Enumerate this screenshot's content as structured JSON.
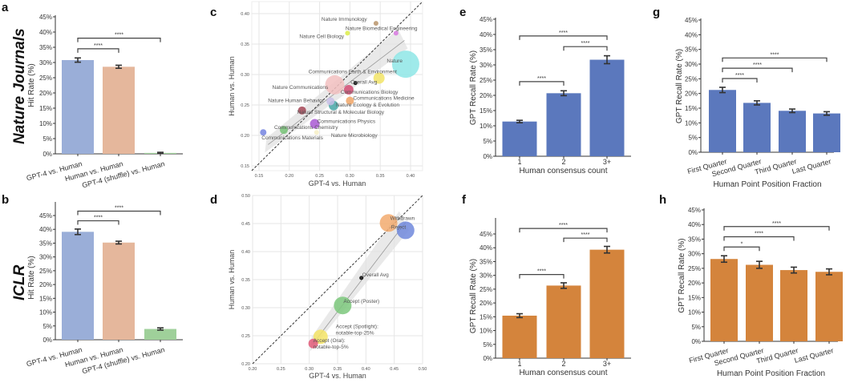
{
  "row_labels": [
    "Nature Journals",
    "ICLR"
  ],
  "chart_data": [
    {
      "panel": "a",
      "type": "bar",
      "categories": [
        "GPT-4 vs. Human",
        "Human vs. Human",
        "GPT-4 (shuffle) vs. Human"
      ],
      "values": [
        30.8,
        28.6,
        0.3
      ],
      "errors": [
        0.7,
        0.5,
        0.2
      ],
      "colors": [
        "#9aaed8",
        "#e5b79c",
        "#9fd09a"
      ],
      "ylabel": "Hit Rate (%)",
      "xlabel": "",
      "ylim": [
        0,
        45
      ],
      "yticks": [
        "0%",
        "5%",
        "10%",
        "15%",
        "20%",
        "25%",
        "30%",
        "35%",
        "40%",
        "45%"
      ],
      "significance": [
        {
          "from": 0,
          "to": 1,
          "label": "****"
        },
        {
          "from": 0,
          "to": 2,
          "label": "****"
        }
      ]
    },
    {
      "panel": "b",
      "type": "bar",
      "categories": [
        "GPT-4 vs. Human",
        "Human vs. Human",
        "GPT-4 (shuffle) vs. Human"
      ],
      "values": [
        39.1,
        35.2,
        3.9
      ],
      "errors": [
        1.0,
        0.5,
        0.4
      ],
      "colors": [
        "#9aaed8",
        "#e5b79c",
        "#9fd09a"
      ],
      "ylabel": "Hit Rate (%)",
      "xlabel": "",
      "ylim": [
        0,
        45
      ],
      "yticks": [
        "0%",
        "5%",
        "10%",
        "15%",
        "20%",
        "25%",
        "30%",
        "35%",
        "40%",
        "45%"
      ],
      "significance": [
        {
          "from": 0,
          "to": 1,
          "label": "****"
        },
        {
          "from": 0,
          "to": 2,
          "label": "****"
        }
      ]
    },
    {
      "panel": "c",
      "type": "scatter",
      "xlabel": "GPT-4 vs. Human",
      "ylabel": "Human vs. Human",
      "xlim": [
        0.14,
        0.42
      ],
      "ylim": [
        0.14,
        0.42
      ],
      "xticks": [
        "0.15",
        "0.20",
        "0.25",
        "0.30",
        "0.35",
        "0.40"
      ],
      "yticks": [
        "0.15",
        "0.20",
        "0.25",
        "0.30",
        "0.35",
        "0.40"
      ],
      "grid": true,
      "diagonal": "y = x (dashed)",
      "regression": [
        [
          0.165,
          0.185
        ],
        [
          0.39,
          0.356
        ]
      ],
      "points": [
        {
          "label": "Nature Immunology",
          "x": 0.343,
          "y": 0.384,
          "size": 3,
          "color": "#b8946a"
        },
        {
          "label": "Nature Biomedical Engineering",
          "x": 0.376,
          "y": 0.368,
          "size": 3,
          "color": "#d878e0"
        },
        {
          "label": "Nature Cell Biology",
          "x": 0.296,
          "y": 0.368,
          "size": 3,
          "color": "#dcec48"
        },
        {
          "label": "Nature",
          "x": 0.392,
          "y": 0.317,
          "size": 17,
          "color": "#8ee6e6"
        },
        {
          "label": "Communications Earth & Environment",
          "x": 0.348,
          "y": 0.294,
          "size": 7,
          "color": "#f2e466"
        },
        {
          "label": "Nature Communications",
          "x": 0.275,
          "y": 0.283,
          "size": 12,
          "color": "#f2c0c0"
        },
        {
          "label": "Overall Avg",
          "x": 0.309,
          "y": 0.286,
          "size": 2,
          "color": "#333333"
        },
        {
          "label": "Communications Biology",
          "x": 0.298,
          "y": 0.275,
          "size": 6,
          "color": "#d24a72"
        },
        {
          "label": "Communications Medicine",
          "x": 0.3,
          "y": 0.257,
          "size": 5,
          "color": "#f0a466"
        },
        {
          "label": "Nature Human Behavior",
          "x": 0.268,
          "y": 0.256,
          "size": 5,
          "color": "#c8c0e8"
        },
        {
          "label": "Nature Ecology & Evolution",
          "x": 0.273,
          "y": 0.249,
          "size": 6,
          "color": "#46a6a6"
        },
        {
          "label": "Nature Structural & Molecular Biology",
          "x": 0.221,
          "y": 0.241,
          "size": 5,
          "color": "#a44656"
        },
        {
          "label": "Communications Physics",
          "x": 0.242,
          "y": 0.219,
          "size": 6,
          "color": "#a858d4"
        },
        {
          "label": "Communications Chemistry",
          "x": 0.191,
          "y": 0.209,
          "size": 5,
          "color": "#78c478"
        },
        {
          "label": "Nature Microbiology",
          "x": 0.245,
          "y": 0.205,
          "size": 3,
          "color": "#f6eec6"
        },
        {
          "label": "Communications Materials",
          "x": 0.157,
          "y": 0.205,
          "size": 4,
          "color": "#7484e0"
        }
      ]
    },
    {
      "panel": "d",
      "type": "scatter",
      "xlabel": "GPT-4 vs. Human",
      "ylabel": "Human vs. Human",
      "xlim": [
        0.2,
        0.5
      ],
      "ylim": [
        0.2,
        0.5
      ],
      "xticks": [
        "0.20",
        "0.25",
        "0.30",
        "0.35",
        "0.40",
        "0.45",
        "0.50"
      ],
      "yticks": [
        "0.20",
        "0.25",
        "0.30",
        "0.35",
        "0.40",
        "0.45",
        "0.50"
      ],
      "grid": true,
      "diagonal": "y = x (dashed)",
      "regression": [
        [
          0.307,
          0.236
        ],
        [
          0.47,
          0.452
        ]
      ],
      "points": [
        {
          "label": "Withdrawn",
          "x": 0.44,
          "y": 0.451,
          "size": 11,
          "color": "#f2aa6e"
        },
        {
          "label": "Reject",
          "x": 0.47,
          "y": 0.438,
          "size": 11,
          "color": "#7088dc"
        },
        {
          "label": "Overall Avg",
          "x": 0.392,
          "y": 0.353,
          "size": 2,
          "color": "#333333"
        },
        {
          "label": "Accept (Poster)",
          "x": 0.359,
          "y": 0.304,
          "size": 11,
          "color": "#7cc87c"
        },
        {
          "label": "Accept (Spotlight): notable-top-25%",
          "x": 0.32,
          "y": 0.248,
          "size": 9,
          "color": "#f4e466"
        },
        {
          "label": "Accept (Oral): notable-top-5%",
          "x": 0.307,
          "y": 0.236,
          "size": 6,
          "color": "#e05a78"
        }
      ]
    },
    {
      "panel": "e",
      "type": "bar",
      "categories": [
        "1",
        "2",
        "3+"
      ],
      "values": [
        11.4,
        20.7,
        31.7
      ],
      "errors": [
        0.4,
        0.8,
        1.3
      ],
      "colors": [
        "#5b78bd",
        "#5b78bd",
        "#5b78bd"
      ],
      "ylabel": "GPT Recall Rate (%)",
      "xlabel": "Human consensus count",
      "ylim": [
        0,
        45
      ],
      "yticks": [
        "0%",
        "5%",
        "10%",
        "15%",
        "20%",
        "25%",
        "30%",
        "35%",
        "40%",
        "45%"
      ],
      "significance": [
        {
          "from": 0,
          "to": 1,
          "label": "****"
        },
        {
          "from": 1,
          "to": 2,
          "label": "****"
        },
        {
          "from": 0,
          "to": 2,
          "label": "****"
        }
      ]
    },
    {
      "panel": "f",
      "type": "bar",
      "categories": [
        "1",
        "2",
        "3+"
      ],
      "values": [
        15.4,
        26.3,
        39.3
      ],
      "errors": [
        0.7,
        1.0,
        1.2
      ],
      "colors": [
        "#d4843c",
        "#d4843c",
        "#d4843c"
      ],
      "ylabel": "GPT Recall Rate (%)",
      "xlabel": "Human consensus count",
      "ylim": [
        0,
        45
      ],
      "yticks": [
        "0%",
        "5%",
        "10%",
        "15%",
        "20%",
        "25%",
        "30%",
        "35%",
        "40%",
        "45%"
      ],
      "significance": [
        {
          "from": 0,
          "to": 1,
          "label": "****"
        },
        {
          "from": 1,
          "to": 2,
          "label": "****"
        },
        {
          "from": 0,
          "to": 2,
          "label": "****"
        }
      ]
    },
    {
      "panel": "g",
      "type": "bar",
      "categories": [
        "First Quarter",
        "Second Quarter",
        "Third Quarter",
        "Last Quarter"
      ],
      "values": [
        21.2,
        16.8,
        14.1,
        13.2
      ],
      "errors": [
        0.9,
        0.7,
        0.6,
        0.6
      ],
      "colors": [
        "#5b78bd",
        "#5b78bd",
        "#5b78bd",
        "#5b78bd"
      ],
      "ylabel": "GPT Recall Rate (%)",
      "xlabel": "Human Point Position Fraction",
      "ylim": [
        0,
        45
      ],
      "yticks": [
        "0%",
        "5%",
        "10%",
        "15%",
        "20%",
        "25%",
        "30%",
        "35%",
        "40%",
        "45%"
      ],
      "significance": [
        {
          "from": 0,
          "to": 1,
          "label": "****"
        },
        {
          "from": 0,
          "to": 2,
          "label": "****"
        },
        {
          "from": 0,
          "to": 3,
          "label": "****"
        }
      ]
    },
    {
      "panel": "h",
      "type": "bar",
      "categories": [
        "First Quarter",
        "Second Quarter",
        "Third Quarter",
        "Last Quarter"
      ],
      "values": [
        28.2,
        26.2,
        24.4,
        23.8
      ],
      "errors": [
        1.1,
        1.2,
        1.0,
        1.0
      ],
      "colors": [
        "#d4843c",
        "#d4843c",
        "#d4843c",
        "#d4843c"
      ],
      "ylabel": "GPT Recall Rate (%)",
      "xlabel": "Human Point Position Fraction",
      "ylim": [
        0,
        45
      ],
      "yticks": [
        "0%",
        "5%",
        "10%",
        "15%",
        "20%",
        "25%",
        "30%",
        "35%",
        "40%",
        "45%"
      ],
      "significance": [
        {
          "from": 0,
          "to": 1,
          "label": "*"
        },
        {
          "from": 0,
          "to": 2,
          "label": "****"
        },
        {
          "from": 0,
          "to": 3,
          "label": "****"
        }
      ]
    }
  ]
}
